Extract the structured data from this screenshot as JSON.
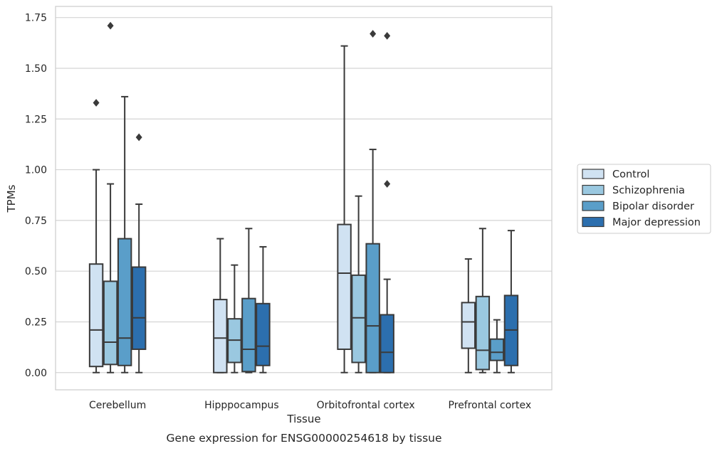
{
  "chart_data": {
    "type": "box",
    "title": "",
    "caption": "Gene expression for ENSG00000254618 by tissue",
    "xlabel": "Tissue",
    "ylabel": "TPMs",
    "ylim": [
      -0.085,
      1.805
    ],
    "yticks": [
      "0.00",
      "0.25",
      "0.50",
      "0.75",
      "1.00",
      "1.25",
      "1.50",
      "1.75"
    ],
    "ytick_values": [
      0,
      0.25,
      0.5,
      0.75,
      1.0,
      1.25,
      1.5,
      1.75
    ],
    "grid": true,
    "legend_position": "right",
    "categories": [
      "Cerebellum",
      "Hipppocampus",
      "Orbitofrontal cortex",
      "Prefrontal cortex"
    ],
    "series": [
      {
        "name": "Control",
        "color": "#d0e2f2",
        "boxes": [
          {
            "min": 0.0,
            "q1": 0.03,
            "median": 0.21,
            "q3": 0.535,
            "max": 1.0,
            "outliers": [
              1.33
            ]
          },
          {
            "min": 0.0,
            "q1": 0.0,
            "median": 0.17,
            "q3": 0.36,
            "max": 0.66,
            "outliers": []
          },
          {
            "min": 0.0,
            "q1": 0.115,
            "median": 0.49,
            "q3": 0.73,
            "max": 1.61,
            "outliers": []
          },
          {
            "min": 0.0,
            "q1": 0.12,
            "median": 0.25,
            "q3": 0.345,
            "max": 0.56,
            "outliers": []
          }
        ]
      },
      {
        "name": "Schizophrenia",
        "color": "#9ac8e0",
        "boxes": [
          {
            "min": 0.0,
            "q1": 0.04,
            "median": 0.15,
            "q3": 0.45,
            "max": 0.93,
            "outliers": [
              1.71
            ]
          },
          {
            "min": 0.0,
            "q1": 0.05,
            "median": 0.16,
            "q3": 0.265,
            "max": 0.53,
            "outliers": []
          },
          {
            "min": 0.0,
            "q1": 0.05,
            "median": 0.27,
            "q3": 0.48,
            "max": 0.87,
            "outliers": []
          },
          {
            "min": 0.0,
            "q1": 0.015,
            "median": 0.11,
            "q3": 0.375,
            "max": 0.71,
            "outliers": []
          }
        ]
      },
      {
        "name": "Bipolar disorder",
        "color": "#5a9ec9",
        "boxes": [
          {
            "min": 0.0,
            "q1": 0.035,
            "median": 0.17,
            "q3": 0.66,
            "max": 1.36,
            "outliers": []
          },
          {
            "min": 0.0,
            "q1": 0.005,
            "median": 0.115,
            "q3": 0.365,
            "max": 0.71,
            "outliers": []
          },
          {
            "min": 0.0,
            "q1": 0.0,
            "median": 0.23,
            "q3": 0.635,
            "max": 1.1,
            "outliers": [
              1.67
            ]
          },
          {
            "min": 0.0,
            "q1": 0.06,
            "median": 0.1,
            "q3": 0.165,
            "max": 0.26,
            "outliers": []
          }
        ]
      },
      {
        "name": "Major depression",
        "color": "#2c6fae",
        "boxes": [
          {
            "min": 0.0,
            "q1": 0.115,
            "median": 0.27,
            "q3": 0.52,
            "max": 0.83,
            "outliers": [
              1.16
            ]
          },
          {
            "min": 0.0,
            "q1": 0.035,
            "median": 0.13,
            "q3": 0.34,
            "max": 0.62,
            "outliers": []
          },
          {
            "min": 0.0,
            "q1": 0.0,
            "median": 0.1,
            "q3": 0.285,
            "max": 0.46,
            "outliers": [
              0.93,
              1.66
            ]
          },
          {
            "min": 0.0,
            "q1": 0.035,
            "median": 0.21,
            "q3": 0.38,
            "max": 0.7,
            "outliers": []
          }
        ]
      }
    ]
  }
}
